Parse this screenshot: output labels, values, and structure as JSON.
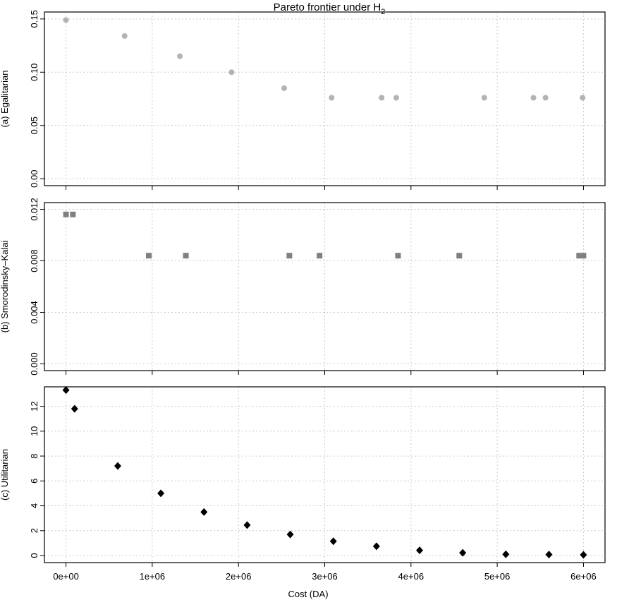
{
  "title": {
    "text": "Pareto frontier under H",
    "subscript": "2"
  },
  "xlabel": "Cost (DA)",
  "colors": {
    "egalitarian": "#b3b3b3",
    "smorodinsky": "#808080",
    "utilitarian": "#000000",
    "grid": "#cccccc"
  },
  "chart_data": [
    {
      "type": "scatter",
      "name": "egalitarian",
      "marker": "circle",
      "ylabel": "(a) Egalitarian",
      "xlim": [
        -250000,
        6250000
      ],
      "ylim": [
        0,
        0.15
      ],
      "yticks": [
        0.0,
        0.05,
        0.1,
        0.15
      ],
      "ytick_labels": [
        "0.00",
        "0.05",
        "0.10",
        "0.15"
      ],
      "grid": true,
      "x": [
        0,
        680000,
        1320000,
        1920000,
        2530000,
        3080000,
        3660000,
        3830000,
        4850000,
        5420000,
        5560000,
        5990000
      ],
      "y": [
        0.149,
        0.134,
        0.115,
        0.1,
        0.085,
        0.076,
        0.076,
        0.076,
        0.076,
        0.076,
        0.076,
        0.076
      ]
    },
    {
      "type": "scatter",
      "name": "smorodinsky",
      "marker": "square",
      "ylabel": "(b) Smorodinsky–Kalai",
      "xlim": [
        -250000,
        6250000
      ],
      "ylim": [
        0,
        0.012
      ],
      "yticks": [
        0.0,
        0.004,
        0.008,
        0.012
      ],
      "ytick_labels": [
        "0.000",
        "0.004",
        "0.008",
        "0.012"
      ],
      "grid": true,
      "x": [
        0,
        80000,
        960000,
        1390000,
        2590000,
        2940000,
        3850000,
        4560000,
        5950000,
        6000000
      ],
      "y": [
        0.0116,
        0.0116,
        0.0084,
        0.0084,
        0.0084,
        0.0084,
        0.0084,
        0.0084,
        0.0084,
        0.0084
      ]
    },
    {
      "type": "scatter",
      "name": "utilitarian",
      "marker": "diamond",
      "ylabel": "(c) Utilitarian",
      "xlim": [
        -250000,
        6250000
      ],
      "ylim": [
        0,
        13
      ],
      "yticks": [
        0,
        2,
        4,
        6,
        8,
        10,
        12
      ],
      "ytick_labels": [
        "0",
        "2",
        "4",
        "6",
        "8",
        "10",
        "12"
      ],
      "xticks": [
        0,
        1000000,
        2000000,
        3000000,
        4000000,
        5000000,
        6000000
      ],
      "xtick_labels": [
        "0e+00",
        "1e+06",
        "2e+06",
        "3e+06",
        "4e+06",
        "5e+06",
        "6e+06"
      ],
      "grid": true,
      "x": [
        0,
        100000,
        600000,
        1100000,
        1600000,
        2100000,
        2600000,
        3100000,
        3600000,
        4100000,
        4600000,
        5100000,
        5600000,
        6000000
      ],
      "y": [
        13.3,
        11.8,
        7.2,
        5.0,
        3.5,
        2.45,
        1.7,
        1.15,
        0.75,
        0.42,
        0.22,
        0.1,
        0.08,
        0.06
      ]
    }
  ]
}
